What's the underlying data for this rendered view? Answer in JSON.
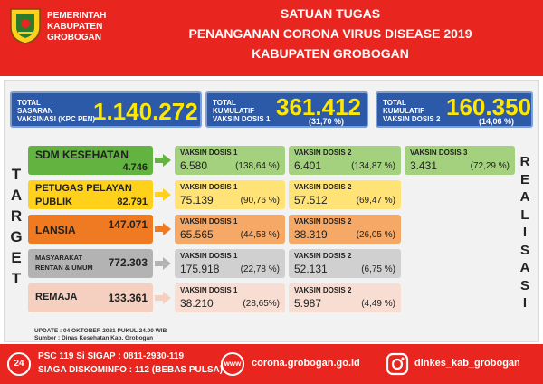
{
  "header": {
    "gov_line1": "PEMERINTAH",
    "gov_line2": "KABUPATEN",
    "gov_line3": "GROBOGAN",
    "title1": "SATUAN TUGAS",
    "title2": "PENANGANAN CORONA VIRUS DISEASE 2019",
    "title3": "KABUPATEN GROBOGAN"
  },
  "summary": {
    "target": {
      "label1": "TOTAL",
      "label2": "SASARAN",
      "label3": "VAKSINASI (KPC PEN)",
      "value": "1.140.272"
    },
    "dose1": {
      "label1": "TOTAL",
      "label2": "KUMULATIF",
      "label3": "VAKSIN DOSIS 1",
      "value": "361.412",
      "pct": "(31,70 %)"
    },
    "dose2": {
      "label1": "TOTAL",
      "label2": "KUMULATIF",
      "label3": "VAKSIN DOSIS 2",
      "value": "160.350",
      "pct": "(14,06 %)"
    }
  },
  "side": {
    "left": [
      "T",
      "A",
      "R",
      "G",
      "E",
      "T"
    ],
    "right": [
      "R",
      "E",
      "A",
      "L",
      "I",
      "S",
      "A",
      "S",
      "I"
    ]
  },
  "categories": [
    {
      "name1": "SDM KESEHATAN",
      "name2": "",
      "value": "4.746",
      "color": "#62b33f",
      "light": "#a3d17e",
      "d1_label": "VAKSIN DOSIS 1",
      "d1_value": "6.580",
      "d1_pct": "(138,64 %)",
      "d2_label": "VAKSIN DOSIS 2",
      "d2_value": "6.401",
      "d2_pct": "(134,87 %)",
      "d3_label": "VAKSIN DOSIS 3",
      "d3_value": "3.431",
      "d3_pct": "(72,29 %)"
    },
    {
      "name1": "PETUGAS PELAYAN",
      "name2": "PUBLIK",
      "value": "82.791",
      "color": "#ffd11a",
      "light": "#ffe376",
      "d1_label": "VAKSIN DOSIS 1",
      "d1_value": "75.139",
      "d1_pct": "(90,76 %)",
      "d2_label": "VAKSIN DOSIS 2",
      "d2_value": "57.512",
      "d2_pct": "(69,47 %)"
    },
    {
      "name1": "LANSIA",
      "name2": "",
      "value": "147.071",
      "color": "#f07a22",
      "light": "#f6a867",
      "d1_label": "VAKSIN DOSIS 1",
      "d1_value": "65.565",
      "d1_pct": "(44,58 %)",
      "d2_label": "VAKSIN DOSIS 2",
      "d2_value": "38.319",
      "d2_pct": "(26,05 %)"
    },
    {
      "name1": "MASYARAKAT",
      "name2": "RENTAN & UMUM",
      "value": "772.303",
      "color": "#b3b3b3",
      "light": "#d0d0d0",
      "d1_label": "VAKSIN DOSIS 1",
      "d1_value": "175.918",
      "d1_pct": "(22,78 %)",
      "d2_label": "VAKSIN DOSIS 2",
      "d2_value": "52.131",
      "d2_pct": "(6,75 %)"
    },
    {
      "name1": "REMAJA",
      "name2": "",
      "value": "133.361",
      "color": "#f5cfc0",
      "light": "#f8ddd2",
      "d1_label": "VAKSIN DOSIS 1",
      "d1_value": "38.210",
      "d1_pct": "(28,65%)",
      "d2_label": "VAKSIN DOSIS 2",
      "d2_value": "5.987",
      "d2_pct": "(4,49 %)"
    }
  ],
  "update": {
    "line1": "UPDATE : 04 OKTOBER 2021 PUKUL 24.00 WIB",
    "line2": "Sumber : Dinas Kesehatan Kab. Grobogan"
  },
  "footer": {
    "phone_icon": "24",
    "psc": "PSC 119 Si SIGAP : 0811-2930-119",
    "siaga": "SIAGA DISKOMINFO : 112 (BEBAS PULSA)",
    "www_icon": "www",
    "website": "corona.grobogan.go.id",
    "instagram": "dinkes_kab_grobogan"
  }
}
